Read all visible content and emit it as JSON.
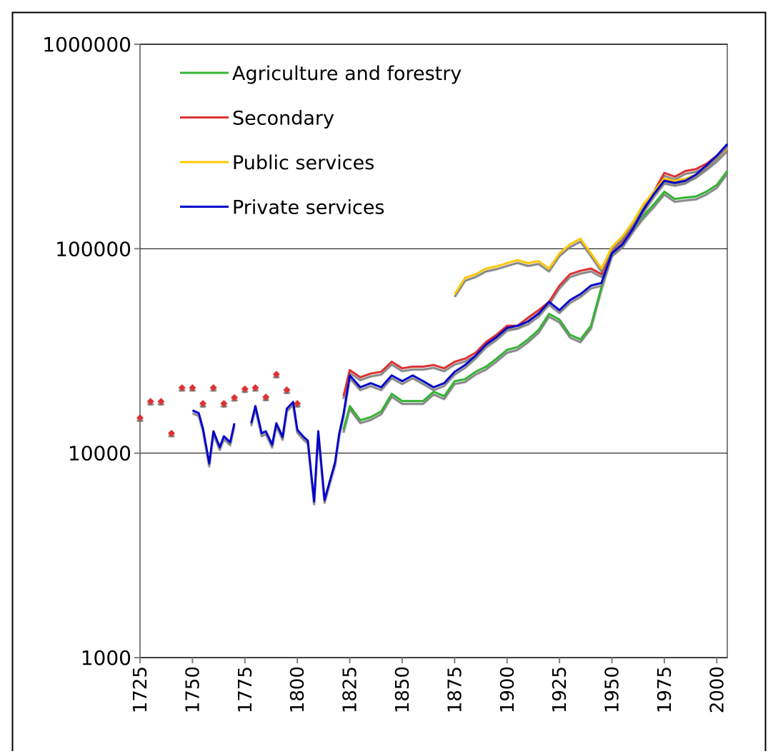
{
  "chart_data": {
    "type": "line",
    "log_scale": true,
    "grid": true,
    "legend_position": "upper-left",
    "x": [
      1725,
      1728,
      1730,
      1733,
      1735,
      1738,
      1740,
      1743,
      1745,
      1748,
      1750,
      1753,
      1755,
      1758,
      1760,
      1763,
      1765,
      1768,
      1770,
      1773,
      1775,
      1778,
      1780,
      1783,
      1785,
      1788,
      1790,
      1793,
      1795,
      1798,
      1800,
      1803,
      1805,
      1808,
      1810,
      1813,
      1815,
      1818,
      1820,
      1822,
      1825,
      1830,
      1835,
      1840,
      1845,
      1850,
      1855,
      1860,
      1865,
      1870,
      1875,
      1880,
      1885,
      1890,
      1895,
      1900,
      1905,
      1910,
      1915,
      1920,
      1925,
      1930,
      1935,
      1940,
      1945,
      1950,
      1955,
      1960,
      1965,
      1970,
      1975,
      1980,
      1985,
      1990,
      1995,
      2000,
      2005
    ],
    "xlim": [
      1725,
      2005
    ],
    "xticks": [
      1725,
      1750,
      1775,
      1800,
      1825,
      1850,
      1875,
      1900,
      1925,
      1950,
      1975,
      2000
    ],
    "ylim": [
      1000,
      1000000
    ],
    "yticks": [
      1000,
      10000,
      100000,
      1000000
    ],
    "series": [
      {
        "name": "Agriculture and forestry",
        "color": "#33b533",
        "values": [
          null,
          null,
          null,
          null,
          null,
          null,
          null,
          null,
          null,
          null,
          null,
          null,
          null,
          null,
          null,
          null,
          null,
          null,
          null,
          null,
          null,
          null,
          null,
          null,
          null,
          null,
          null,
          null,
          null,
          null,
          null,
          null,
          null,
          null,
          null,
          null,
          null,
          null,
          null,
          13000,
          17000,
          14500,
          15000,
          16000,
          19500,
          18000,
          18000,
          18000,
          20000,
          19000,
          22500,
          23000,
          25000,
          26500,
          29000,
          32000,
          33000,
          36000,
          40000,
          48000,
          45000,
          38000,
          36000,
          42000,
          65000,
          95000,
          105000,
          125000,
          145000,
          165000,
          190000,
          175000,
          178000,
          180000,
          190000,
          205000,
          240000
        ]
      },
      {
        "name": "Secondary",
        "color": "#dd3333",
        "values": [
          14900,
          null,
          17900,
          null,
          17900,
          null,
          12500,
          null,
          20900,
          null,
          20900,
          null,
          17500,
          null,
          20900,
          null,
          17500,
          null,
          18700,
          null,
          20600,
          null,
          20900,
          null,
          18800,
          null,
          24300,
          null,
          20400,
          null,
          17500,
          null,
          null,
          null,
          null,
          null,
          null,
          null,
          null,
          19000,
          25500,
          23500,
          24500,
          25000,
          28000,
          26000,
          26500,
          26500,
          27000,
          26000,
          28000,
          29000,
          31000,
          35000,
          38000,
          42000,
          42000,
          46000,
          50000,
          55000,
          66000,
          75000,
          78000,
          80000,
          75000,
          98000,
          110000,
          130000,
          160000,
          190000,
          235000,
          225000,
          240000,
          245000,
          260000,
          285000,
          320000
        ]
      },
      {
        "name": "Public services",
        "color": "#ffc800",
        "values": [
          null,
          null,
          null,
          null,
          null,
          null,
          null,
          null,
          null,
          null,
          null,
          null,
          null,
          null,
          null,
          null,
          null,
          null,
          null,
          null,
          null,
          null,
          null,
          null,
          null,
          null,
          null,
          null,
          null,
          null,
          null,
          null,
          null,
          null,
          null,
          null,
          null,
          null,
          null,
          null,
          null,
          null,
          null,
          null,
          null,
          null,
          null,
          null,
          null,
          null,
          60000,
          72000,
          75000,
          80000,
          82000,
          85000,
          88000,
          85000,
          87000,
          80000,
          95000,
          105000,
          112000,
          95000,
          80000,
          102000,
          115000,
          135000,
          165000,
          190000,
          220000,
          215000,
          220000,
          230000,
          250000,
          275000,
          310000
        ]
      },
      {
        "name": "Private services",
        "color": "#0000cc",
        "values": [
          null,
          null,
          null,
          null,
          null,
          null,
          null,
          null,
          null,
          null,
          16200,
          15700,
          13200,
          8900,
          12800,
          10700,
          12100,
          11300,
          14000,
          null,
          null,
          14000,
          17000,
          12500,
          12800,
          11000,
          14000,
          12000,
          16500,
          17800,
          13000,
          12000,
          11500,
          5800,
          12800,
          5900,
          7000,
          9000,
          12500,
          15500,
          24000,
          21000,
          22000,
          21000,
          24000,
          22500,
          24000,
          22500,
          21000,
          22000,
          25000,
          27000,
          30000,
          34000,
          37000,
          41000,
          42000,
          44000,
          48000,
          55000,
          50000,
          56000,
          60000,
          66000,
          68000,
          95000,
          105000,
          125000,
          155000,
          185000,
          215000,
          210000,
          215000,
          230000,
          255000,
          285000,
          325000
        ]
      }
    ]
  }
}
